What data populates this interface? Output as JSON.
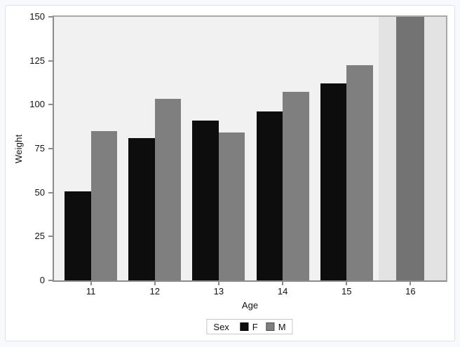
{
  "chart_data": {
    "type": "bar",
    "title": "",
    "xlabel": "Age",
    "ylabel": "Weight",
    "categories": [
      "11",
      "12",
      "13",
      "14",
      "15",
      "16"
    ],
    "series": [
      {
        "name": "F",
        "color": "#0d0d0d",
        "values": [
          50.5,
          80.8,
          91,
          96.3,
          112.3,
          null
        ]
      },
      {
        "name": "M",
        "color": "#7f7f7f",
        "values": [
          85,
          103.5,
          84,
          107.5,
          122.5,
          150
        ]
      }
    ],
    "ylim": [
      0,
      150
    ],
    "yticks": [
      0,
      25,
      50,
      75,
      100,
      125,
      150
    ],
    "grid": false,
    "legend_position": "bottom-center",
    "plot_bg": "#f1f1f1",
    "highlight_band": {
      "category": "16",
      "band_color": "#e3e3e3",
      "bar_color": "#737373"
    }
  },
  "axes": {
    "x_label": "Age",
    "y_label": "Weight"
  },
  "legend": {
    "title": "Sex",
    "items": [
      {
        "label": "F",
        "color": "#0d0d0d",
        "border": "#000000"
      },
      {
        "label": "M",
        "color": "#7f7f7f",
        "border": "#4d4d4d"
      }
    ]
  },
  "colors": {
    "page_bg": "#f8f9fd",
    "card_bg": "#ffffff",
    "card_border": "#dde0e6",
    "axis_line": "#8b8b8b",
    "frame_line": "#a9a9a9",
    "tick_mark": "#8b8b8b",
    "text": "#111111"
  }
}
